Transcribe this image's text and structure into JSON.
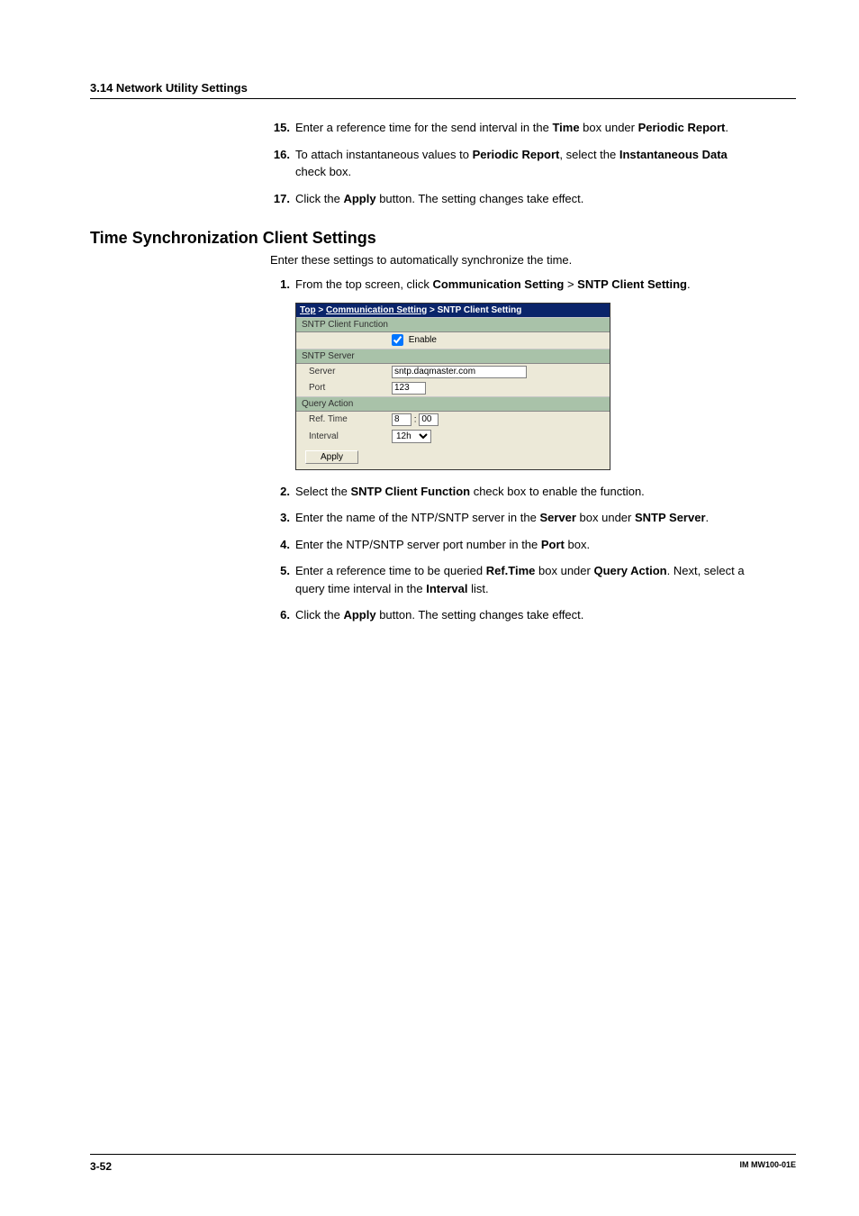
{
  "header": {
    "section": "3.14  Network Utility Settings"
  },
  "list1": [
    {
      "n": "15.",
      "html": "Enter a reference time for the send interval in the <b>Time</b> box under <b>Periodic Report</b>."
    },
    {
      "n": "16.",
      "html": "To attach instantaneous values to <b>Periodic Report</b>, select the <b>Instantaneous Data</b> check box."
    },
    {
      "n": "17.",
      "html": "Click the <b>Apply</b> button. The setting changes take effect."
    }
  ],
  "heading2": "Time Synchronization Client Settings",
  "intro": "Enter these settings to automatically synchronize the time.",
  "list2a": [
    {
      "n": "1.",
      "html": "From the top screen, click <b>Communication Setting</b> > <b>SNTP Client Setting</b>."
    }
  ],
  "figure": {
    "breadcrumb": {
      "top": "Top",
      "mid": "Communication Setting",
      "leaf": "SNTP Client Setting"
    },
    "group1": {
      "title": "SNTP Client Function",
      "enable_label": "Enable",
      "enable_checked": true
    },
    "group2": {
      "title": "SNTP Server",
      "server_label": "Server",
      "server_value": "sntp.daqmaster.com",
      "port_label": "Port",
      "port_value": "123"
    },
    "group3": {
      "title": "Query Action",
      "ref_label": "Ref. Time",
      "ref_h": "8",
      "ref_m": "00",
      "interval_label": "Interval",
      "interval_value": "12h"
    },
    "apply": "Apply"
  },
  "list2b": [
    {
      "n": "2.",
      "html": "Select the <b>SNTP Client Function</b> check box to enable the function."
    },
    {
      "n": "3.",
      "html": "Enter the name of the NTP/SNTP server in the <b>Server</b> box under <b>SNTP Server</b>."
    },
    {
      "n": "4.",
      "html": "Enter the NTP/SNTP server port number in the <b>Port</b> box."
    },
    {
      "n": "5.",
      "html": "Enter a reference time to be queried <b>Ref.Time</b> box under <b>Query Action</b>. Next, select a query time interval in the <b>Interval</b> list."
    },
    {
      "n": "6.",
      "html": "Click the <b>Apply</b> button. The setting changes take effect."
    }
  ],
  "footer": {
    "page": "3-52",
    "doc": "IM MW100-01E"
  }
}
